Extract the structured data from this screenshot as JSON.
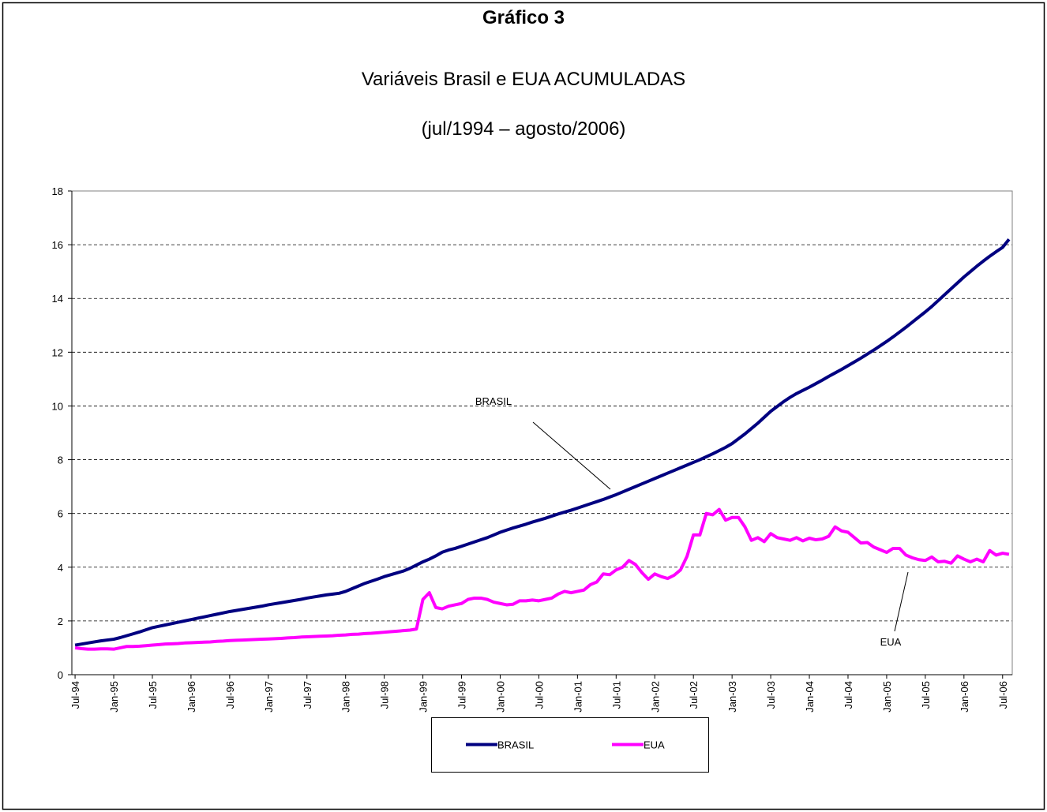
{
  "chart_data": {
    "type": "line",
    "title": "Gráfico 3",
    "subtitle": "Variáveis Brasil e EUA ACUMULADAS",
    "subtitle2": "(jul/1994 – agosto/2006)",
    "categories": [
      "Jul-94",
      null,
      null,
      null,
      null,
      null,
      "Jan-95",
      null,
      null,
      null,
      null,
      null,
      "Jul-95",
      null,
      null,
      null,
      null,
      null,
      "Jan-96",
      null,
      null,
      null,
      null,
      null,
      "Jul-96",
      null,
      null,
      null,
      null,
      null,
      "Jan-97",
      null,
      null,
      null,
      null,
      null,
      "Jul-97",
      null,
      null,
      null,
      null,
      null,
      "Jan-98",
      null,
      null,
      null,
      null,
      null,
      "Jul-98",
      null,
      null,
      null,
      null,
      null,
      "Jan-99",
      null,
      null,
      null,
      null,
      null,
      "Jul-99",
      null,
      null,
      null,
      null,
      null,
      "Jan-00",
      null,
      null,
      null,
      null,
      null,
      "Jul-00",
      null,
      null,
      null,
      null,
      null,
      "Jan-01",
      null,
      null,
      null,
      null,
      null,
      "Jul-01",
      null,
      null,
      null,
      null,
      null,
      "Jan-02",
      null,
      null,
      null,
      null,
      null,
      "Jul-02",
      null,
      null,
      null,
      null,
      null,
      "Jan-03",
      null,
      null,
      null,
      null,
      null,
      "Jul-03",
      null,
      null,
      null,
      null,
      null,
      "Jan-04",
      null,
      null,
      null,
      null,
      null,
      "Jul-04",
      null,
      null,
      null,
      null,
      null,
      "Jan-05",
      null,
      null,
      null,
      null,
      null,
      "Jul-05",
      null,
      null,
      null,
      null,
      null,
      "Jan-06",
      null,
      null,
      null,
      null,
      null,
      "Jul-06",
      null
    ],
    "series": [
      {
        "name": "BRASIL",
        "color": "#000080",
        "values": [
          1.1,
          1.14,
          1.18,
          1.22,
          1.26,
          1.29,
          1.32,
          1.38,
          1.45,
          1.52,
          1.59,
          1.67,
          1.75,
          1.8,
          1.85,
          1.9,
          1.95,
          2.0,
          2.05,
          2.1,
          2.15,
          2.2,
          2.25,
          2.3,
          2.35,
          2.39,
          2.43,
          2.47,
          2.51,
          2.55,
          2.6,
          2.64,
          2.68,
          2.72,
          2.76,
          2.8,
          2.85,
          2.89,
          2.93,
          2.97,
          3.0,
          3.03,
          3.1,
          3.2,
          3.3,
          3.4,
          3.48,
          3.56,
          3.65,
          3.72,
          3.79,
          3.86,
          3.96,
          4.08,
          4.2,
          4.3,
          4.42,
          4.56,
          4.64,
          4.7,
          4.78,
          4.86,
          4.94,
          5.02,
          5.1,
          5.2,
          5.3,
          5.38,
          5.46,
          5.53,
          5.6,
          5.68,
          5.75,
          5.82,
          5.9,
          5.98,
          6.05,
          6.12,
          6.2,
          6.28,
          6.36,
          6.44,
          6.52,
          6.61,
          6.7,
          6.8,
          6.9,
          7.0,
          7.1,
          7.2,
          7.3,
          7.4,
          7.5,
          7.6,
          7.7,
          7.8,
          7.9,
          8.0,
          8.11,
          8.22,
          8.34,
          8.46,
          8.6,
          8.78,
          8.96,
          9.16,
          9.36,
          9.58,
          9.8,
          9.98,
          10.16,
          10.32,
          10.46,
          10.58,
          10.7,
          10.83,
          10.96,
          11.1,
          11.23,
          11.36,
          11.5,
          11.64,
          11.78,
          11.93,
          12.08,
          12.24,
          12.4,
          12.57,
          12.75,
          12.93,
          13.12,
          13.31,
          13.5,
          13.7,
          13.92,
          14.14,
          14.36,
          14.58,
          14.8,
          15.0,
          15.2,
          15.39,
          15.57,
          15.74,
          15.9,
          16.2
        ]
      },
      {
        "name": "EUA",
        "color": "#ff00ff",
        "values": [
          1.0,
          0.97,
          0.95,
          0.95,
          0.96,
          0.96,
          0.95,
          1.0,
          1.05,
          1.05,
          1.06,
          1.08,
          1.1,
          1.12,
          1.14,
          1.15,
          1.16,
          1.18,
          1.19,
          1.2,
          1.21,
          1.22,
          1.24,
          1.25,
          1.27,
          1.28,
          1.29,
          1.3,
          1.31,
          1.32,
          1.33,
          1.34,
          1.35,
          1.37,
          1.38,
          1.4,
          1.41,
          1.42,
          1.43,
          1.44,
          1.45,
          1.47,
          1.48,
          1.5,
          1.51,
          1.53,
          1.54,
          1.56,
          1.58,
          1.6,
          1.62,
          1.64,
          1.66,
          1.7,
          2.8,
          3.05,
          2.5,
          2.45,
          2.55,
          2.6,
          2.65,
          2.8,
          2.85,
          2.85,
          2.8,
          2.7,
          2.65,
          2.6,
          2.62,
          2.75,
          2.75,
          2.78,
          2.75,
          2.8,
          2.85,
          3.0,
          3.1,
          3.05,
          3.1,
          3.15,
          3.35,
          3.45,
          3.75,
          3.72,
          3.9,
          4.0,
          4.25,
          4.1,
          3.8,
          3.55,
          3.75,
          3.65,
          3.58,
          3.7,
          3.9,
          4.4,
          5.2,
          5.2,
          6.0,
          5.95,
          6.15,
          5.75,
          5.85,
          5.85,
          5.5,
          5.0,
          5.1,
          4.95,
          5.25,
          5.1,
          5.05,
          5.0,
          5.1,
          4.98,
          5.08,
          5.02,
          5.05,
          5.15,
          5.5,
          5.35,
          5.3,
          5.1,
          4.9,
          4.92,
          4.75,
          4.65,
          4.55,
          4.7,
          4.7,
          4.45,
          4.35,
          4.28,
          4.25,
          4.38,
          4.2,
          4.22,
          4.15,
          4.42,
          4.3,
          4.2,
          4.3,
          4.2,
          4.62,
          4.45,
          4.52,
          4.48
        ]
      }
    ],
    "ylim": [
      0,
      18
    ],
    "yticks": [
      0,
      2,
      4,
      6,
      8,
      10,
      12,
      14,
      16,
      18
    ],
    "grid": true,
    "legend": "bottom",
    "annotations": [
      {
        "text": "BRASIL"
      },
      {
        "text": "EUA"
      }
    ]
  }
}
